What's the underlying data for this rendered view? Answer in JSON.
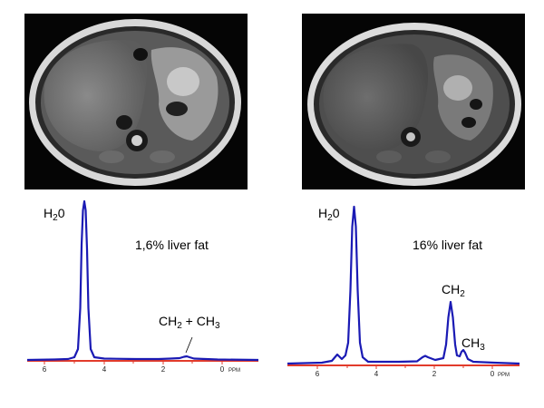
{
  "left_panel": {
    "fat_label": "1,6% liver fat",
    "peak_water": {
      "main": "H",
      "sub": "2",
      "tail": "0"
    },
    "peak_fat": {
      "a_main": "CH",
      "a_sub": "2",
      "plus": " + ",
      "b_main": "CH",
      "b_sub": "3"
    },
    "ticks": [
      "6",
      "4",
      "2",
      "0"
    ],
    "ppm": "PPM"
  },
  "right_panel": {
    "fat_label": "16% liver fat",
    "peak_water": {
      "main": "H",
      "sub": "2",
      "tail": "0"
    },
    "peak_ch2": {
      "main": "CH",
      "sub": "2"
    },
    "peak_ch3": {
      "main": "CH",
      "sub": "3"
    },
    "ticks": [
      "6",
      "4",
      "2",
      "0"
    ],
    "ppm": "PPM"
  },
  "colors": {
    "spectrum_line": "#1a1ab4",
    "axis_line": "#e23b2b",
    "mri_background": "#050505"
  }
}
